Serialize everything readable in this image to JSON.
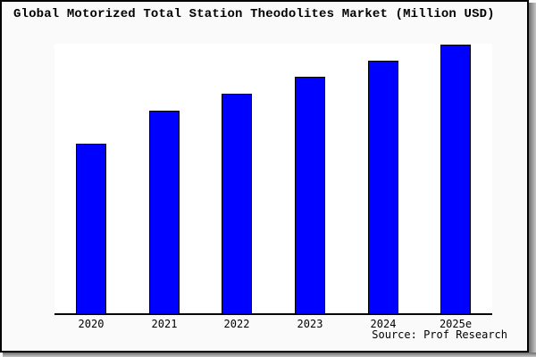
{
  "title": "Global Motorized Total Station Theodolites Market (Million USD)",
  "source": "Source: Prof Research",
  "colors": {
    "bar_fill": "#0000ff",
    "bar_border": "#000000",
    "canvas_background": "#fafafa",
    "plot_background": "#ffffff",
    "axis": "#000000",
    "frame_border": "#000000"
  },
  "chart_data": {
    "type": "bar",
    "title": "Global Motorized Total Station Theodolites Market (Million USD)",
    "categories": [
      "2020",
      "2021",
      "2022",
      "2023",
      "2024",
      "2025e"
    ],
    "values": [
      189,
      226,
      245,
      264,
      282,
      300
    ],
    "values_note": "y-axis has no tick labels or gridlines; values are relative bar heights read from pixels (2025e tallest)",
    "xlabel": "",
    "ylabel": "",
    "legend": "none",
    "grid": false,
    "annotations": [
      "Source: Prof Research"
    ]
  }
}
